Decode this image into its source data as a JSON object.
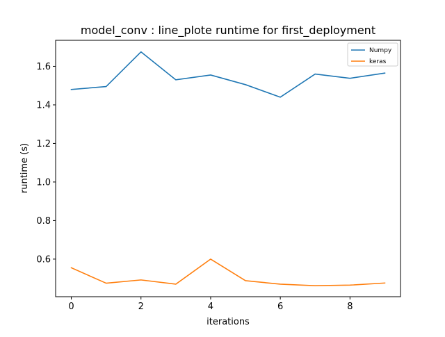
{
  "chart_data": {
    "type": "line",
    "title": "model_conv : line_plote runtime  for first_deployment",
    "xlabel": "iterations",
    "ylabel": "runtime (s)",
    "x": [
      0,
      1,
      2,
      3,
      4,
      5,
      6,
      7,
      8,
      9
    ],
    "xlim": [
      -0.45,
      9.45
    ],
    "ylim": [
      0.405,
      1.735
    ],
    "xticks": [
      0,
      2,
      4,
      6,
      8
    ],
    "yticks": [
      0.6,
      0.8,
      1.0,
      1.2,
      1.4,
      1.6
    ],
    "xtick_labels": [
      "0",
      "2",
      "4",
      "6",
      "8"
    ],
    "ytick_labels": [
      "0.6",
      "0.8",
      "1.0",
      "1.2",
      "1.4",
      "1.6"
    ],
    "grid": false,
    "legend_position": "top-right",
    "series": [
      {
        "name": "Numpy",
        "color": "#1f77b4",
        "values": [
          1.48,
          1.495,
          1.675,
          1.53,
          1.555,
          1.505,
          1.44,
          1.56,
          1.538,
          1.565
        ]
      },
      {
        "name": "keras",
        "color": "#ff7f0e",
        "values": [
          0.555,
          0.475,
          0.492,
          0.47,
          0.6,
          0.488,
          0.47,
          0.462,
          0.465,
          0.476
        ]
      }
    ]
  }
}
